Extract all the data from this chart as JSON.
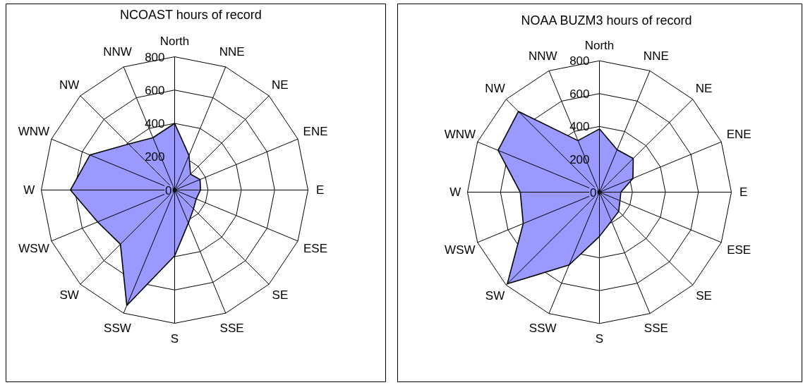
{
  "chart_data": [
    {
      "type": "radar",
      "title": "NCOAST hours of record",
      "categories": [
        "North",
        "NNE",
        "NE",
        "ENE",
        "E",
        "ESE",
        "SE",
        "SSE",
        "S",
        "SSW",
        "SW",
        "WSW",
        "W",
        "WNW",
        "NW",
        "NNW"
      ],
      "series": [
        {
          "color": "#9999ff",
          "values": [
            400,
            225,
            135,
            165,
            155,
            140,
            160,
            215,
            395,
            750,
            460,
            500,
            625,
            550,
            390,
            340
          ]
        }
      ],
      "ylim": [
        0,
        800
      ],
      "yticks": [
        0,
        200,
        400,
        600,
        800
      ],
      "grid": true,
      "marker": "none"
    },
    {
      "type": "radar",
      "title": "NOAA BUZM3  hours of record",
      "categories": [
        "North",
        "NNE",
        "NE",
        "ENE",
        "E",
        "ESE",
        "SE",
        "SSE",
        "S",
        "SSW",
        "SW",
        "WSW",
        "W",
        "WNW",
        "NW",
        "NNW"
      ],
      "series": [
        {
          "color": "#9999ff",
          "values": [
            385,
            280,
            290,
            220,
            130,
            135,
            165,
            190,
            270,
            480,
            790,
            500,
            480,
            665,
            695,
            340
          ]
        }
      ],
      "ylim": [
        0,
        800
      ],
      "yticks": [
        0,
        200,
        400,
        600,
        800
      ],
      "grid": true,
      "marker": "none"
    }
  ]
}
